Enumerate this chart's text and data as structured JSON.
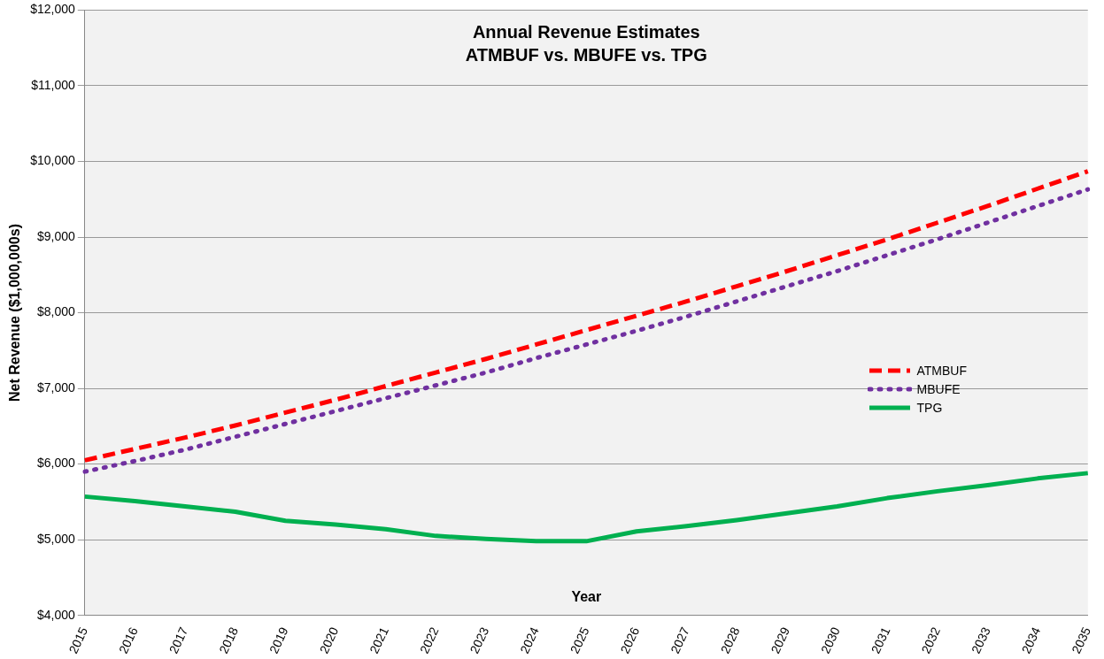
{
  "chart_data": {
    "type": "line",
    "title": "Annual Revenue Estimates\nATMBUF vs. MBUFE vs. TPG",
    "xlabel": "Year",
    "ylabel": "Net Revenue ($1,000,000s)",
    "categories": [
      "2015",
      "2016",
      "2017",
      "2018",
      "2019",
      "2020",
      "2021",
      "2022",
      "2023",
      "2024",
      "2025",
      "2026",
      "2027",
      "2028",
      "2029",
      "2030",
      "2031",
      "2032",
      "2033",
      "2034",
      "2035"
    ],
    "series": [
      {
        "name": "ATMBUF",
        "color": "#ff0000",
        "line_style": "dashed",
        "values": [
          6050,
          6200,
          6350,
          6510,
          6680,
          6850,
          7030,
          7210,
          7390,
          7580,
          7770,
          7960,
          8150,
          8350,
          8550,
          8760,
          8970,
          9190,
          9410,
          9640,
          9870
        ]
      },
      {
        "name": "MBUFE",
        "color": "#7030a0",
        "line_style": "dotted",
        "values": [
          5900,
          6040,
          6190,
          6360,
          6530,
          6700,
          6870,
          7040,
          7210,
          7400,
          7580,
          7760,
          7950,
          8150,
          8350,
          8550,
          8760,
          8970,
          9190,
          9410,
          9630
        ]
      },
      {
        "name": "TPG",
        "color": "#00b050",
        "line_style": "solid",
        "values": [
          5570,
          5510,
          5440,
          5370,
          5250,
          5200,
          5140,
          5050,
          5010,
          4980,
          4980,
          5110,
          5180,
          5260,
          5350,
          5440,
          5550,
          5640,
          5720,
          5810,
          5880
        ]
      }
    ],
    "ylim": [
      4000,
      12000
    ],
    "yticks": [
      {
        "value": 4000,
        "label": "$4,000"
      },
      {
        "value": 5000,
        "label": "$5,000"
      },
      {
        "value": 6000,
        "label": "$6,000"
      },
      {
        "value": 7000,
        "label": "$7,000"
      },
      {
        "value": 8000,
        "label": "$8,000"
      },
      {
        "value": 9000,
        "label": "$9,000"
      },
      {
        "value": 10000,
        "label": "$10,000"
      },
      {
        "value": 11000,
        "label": "$11,000"
      },
      {
        "value": 12000,
        "label": "$12,000"
      }
    ],
    "grid": "y",
    "legend": "right",
    "marker": "none"
  }
}
